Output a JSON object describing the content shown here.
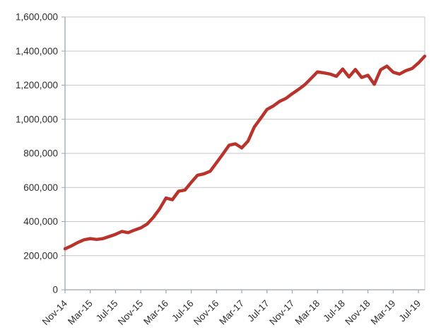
{
  "chart_data": {
    "type": "line",
    "title": "",
    "xlabel": "",
    "ylabel": "",
    "x": [
      "Nov-14",
      "Dec-14",
      "Jan-15",
      "Feb-15",
      "Mar-15",
      "Apr-15",
      "May-15",
      "Jun-15",
      "Jul-15",
      "Aug-15",
      "Sep-15",
      "Oct-15",
      "Nov-15",
      "Dec-15",
      "Jan-16",
      "Feb-16",
      "Mar-16",
      "Apr-16",
      "May-16",
      "Jun-16",
      "Jul-16",
      "Aug-16",
      "Sep-16",
      "Oct-16",
      "Nov-16",
      "Dec-16",
      "Jan-17",
      "Feb-17",
      "Mar-17",
      "Apr-17",
      "May-17",
      "Jun-17",
      "Jul-17",
      "Aug-17",
      "Sep-17",
      "Oct-17",
      "Nov-17",
      "Dec-17",
      "Jan-18",
      "Feb-18",
      "Mar-18",
      "Apr-18",
      "May-18",
      "Jun-18",
      "Jul-18",
      "Aug-18",
      "Sep-18",
      "Oct-18",
      "Nov-18",
      "Dec-18",
      "Jan-19",
      "Feb-19",
      "Mar-19",
      "Apr-19",
      "May-19",
      "Jun-19",
      "Jul-19",
      "Aug-19"
    ],
    "series": [
      {
        "name": "value",
        "values": [
          240000,
          257000,
          277000,
          293000,
          300000,
          295000,
          300000,
          312000,
          325000,
          342000,
          335000,
          350000,
          363000,
          385000,
          425000,
          475000,
          538000,
          528000,
          578000,
          585000,
          630000,
          672000,
          680000,
          695000,
          745000,
          795000,
          848000,
          856000,
          832000,
          872000,
          955000,
          1005000,
          1058000,
          1078000,
          1105000,
          1122000,
          1150000,
          1175000,
          1203000,
          1240000,
          1278000,
          1272000,
          1265000,
          1252000,
          1295000,
          1248000,
          1292000,
          1245000,
          1258000,
          1205000,
          1290000,
          1312000,
          1276000,
          1265000,
          1285000,
          1298000,
          1330000,
          1370000
        ]
      }
    ],
    "x_tick_labels": [
      "Nov-14",
      "Mar-15",
      "Jul-15",
      "Nov-15",
      "Mar-16",
      "Jul-16",
      "Nov-16",
      "Mar-17",
      "Jul-17",
      "Nov-17",
      "Mar-18",
      "Jul-18",
      "Nov-18",
      "Mar-19",
      "Jul-19"
    ],
    "x_tick_every": 4,
    "y_tick_labels": [
      "0",
      "200,000",
      "400,000",
      "600,000",
      "800,000",
      "1,000,000",
      "1,200,000",
      "1,400,000",
      "1,600,000"
    ],
    "ylim": [
      0,
      1600000
    ],
    "y_tick_step": 200000,
    "grid": "horizontal",
    "legend_position": "none",
    "colors": {
      "line": "#b9332d",
      "gridline": "#c6c6c6",
      "axis": "#9aa5ae",
      "plot_border": "#c9ccce",
      "label_text": "#2e2e2e",
      "background": "#ffffff"
    }
  }
}
